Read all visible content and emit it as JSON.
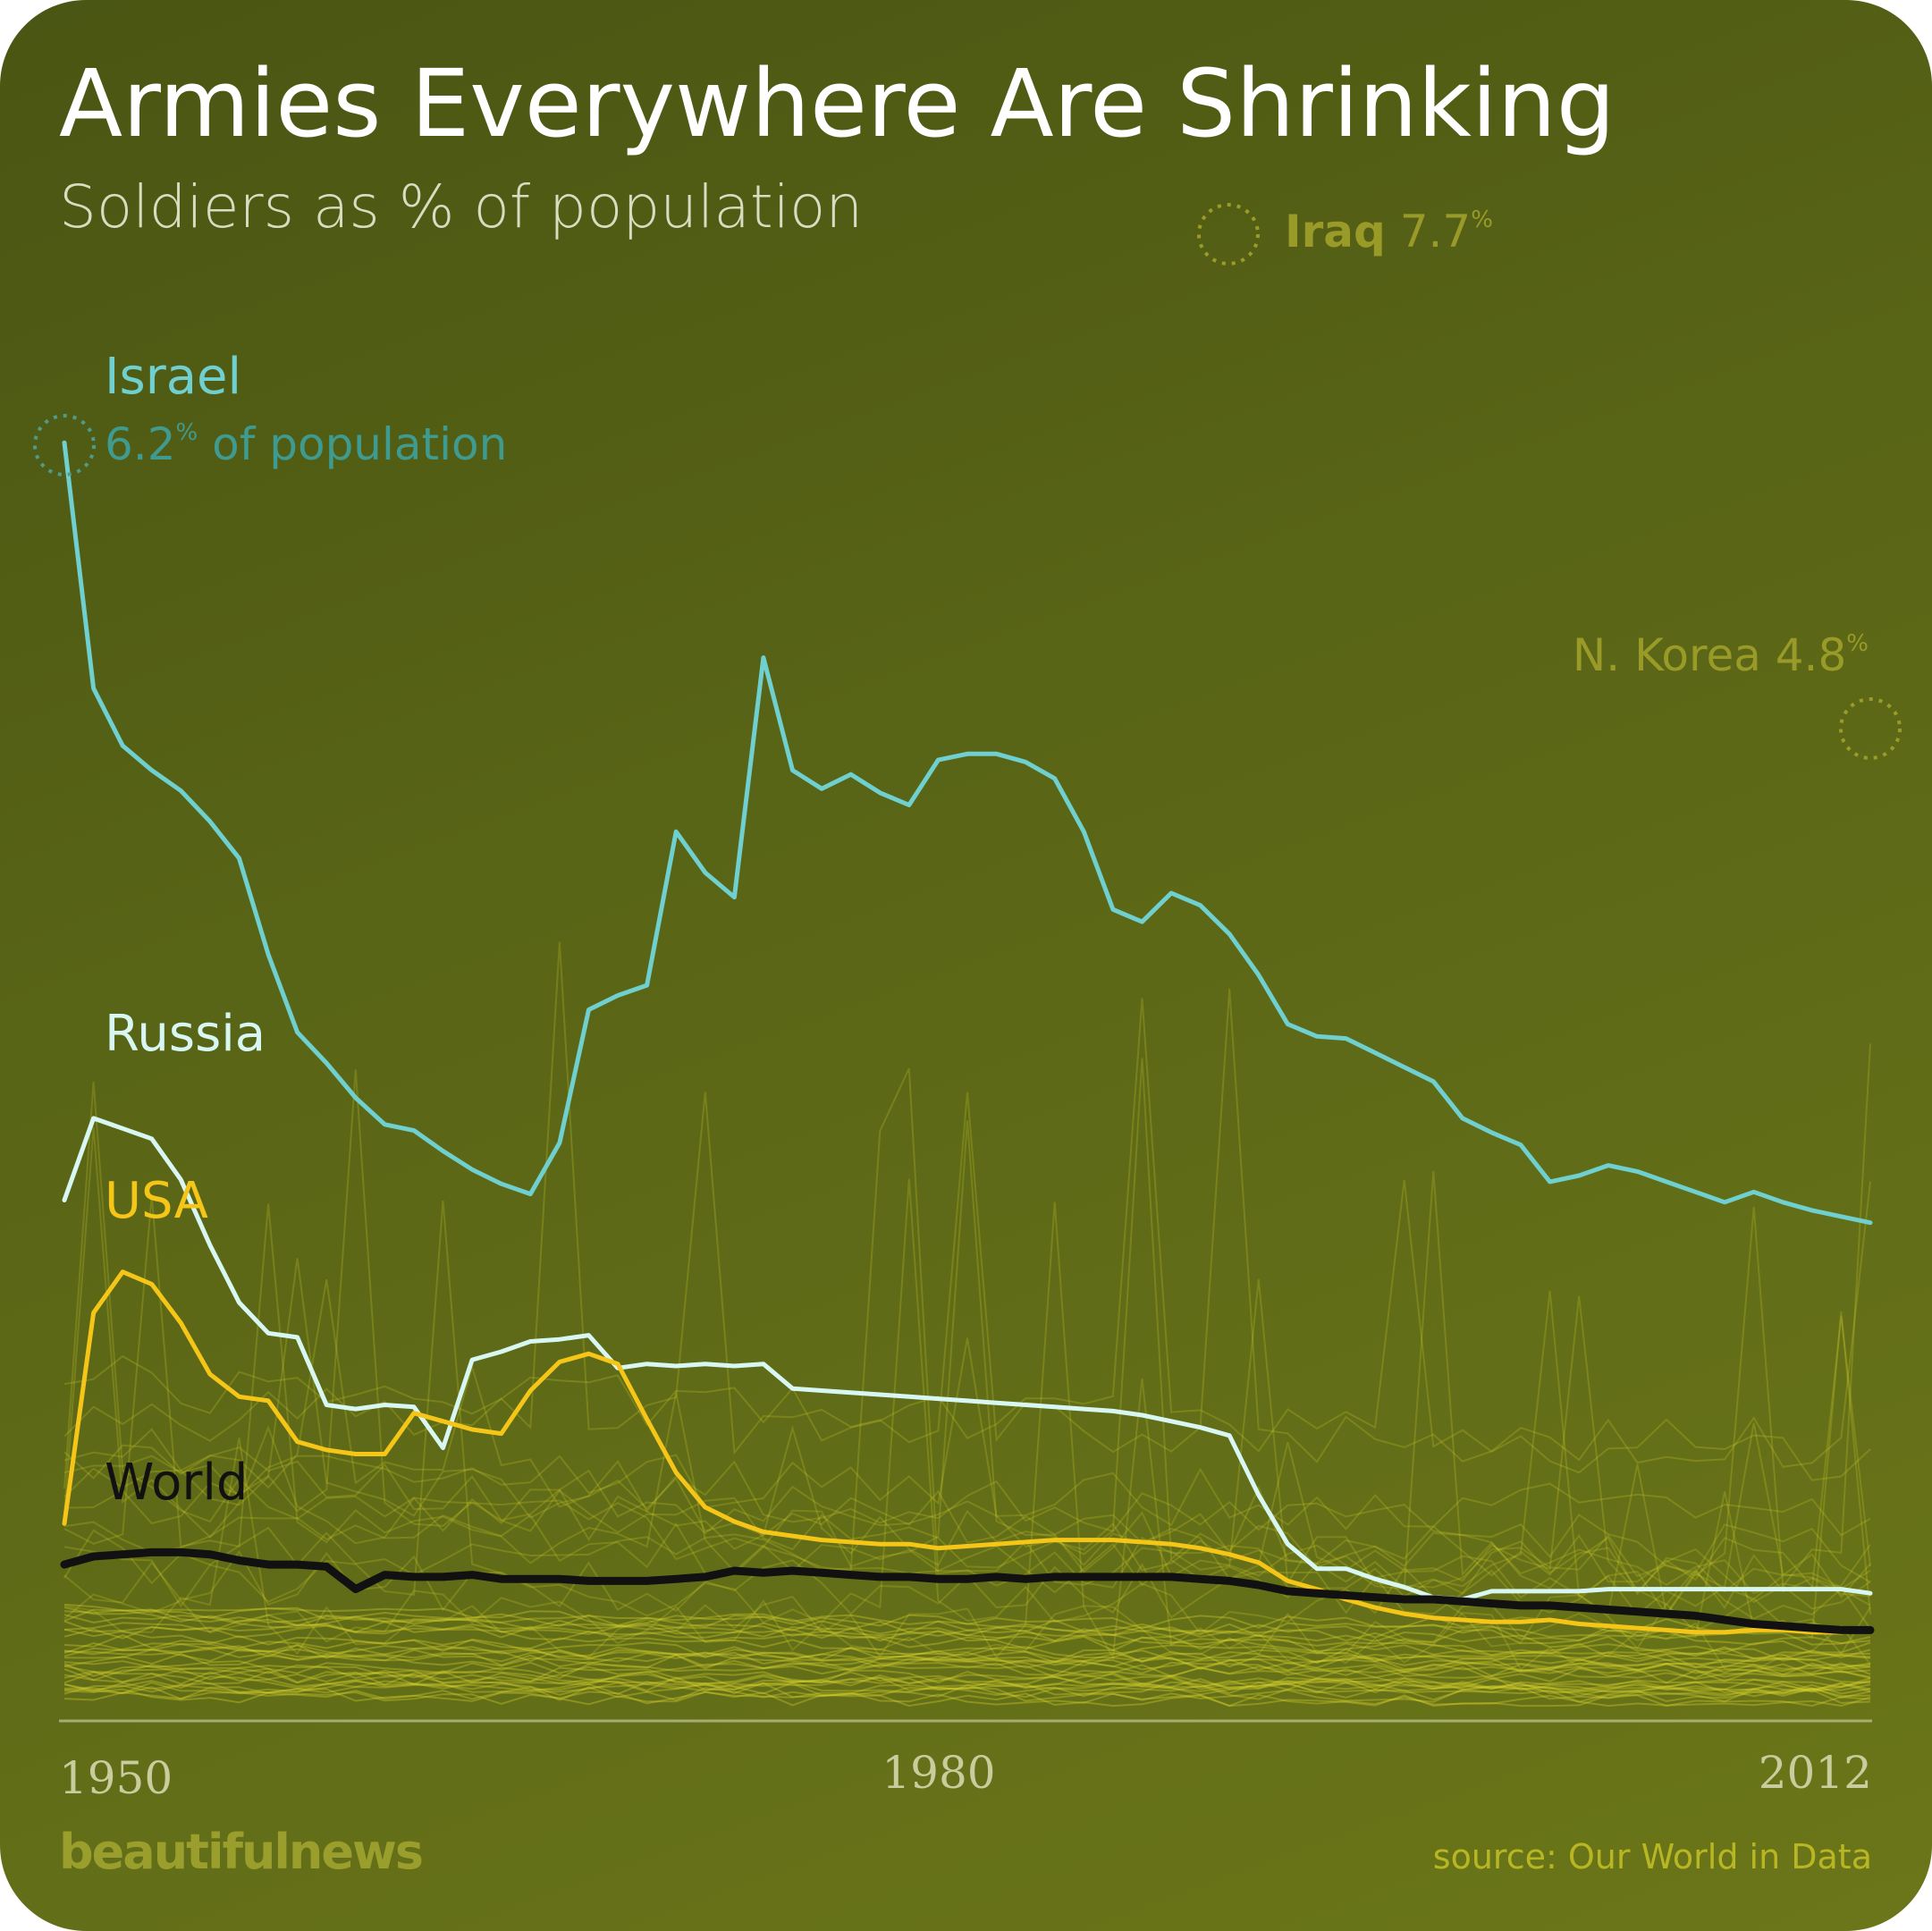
{
  "title": "Armies Everywhere Are Shrinking",
  "subtitle": "Soldiers as % of population",
  "brand": "beautifulnews",
  "source": "source: Our World in Data",
  "colors": {
    "israel": "#6fd0cf",
    "russia": "#d8f7f2",
    "usa": "#f5c518",
    "world": "#111111",
    "background_lines": "#d9d42e",
    "axis": "#c9cc9c"
  },
  "annotations": {
    "israel": {
      "name": "Israel",
      "value": "6.2",
      "unit": "%",
      "suffix": "of population"
    },
    "iraq": {
      "name": "Iraq",
      "value": "7.7",
      "unit": "%"
    },
    "nkorea": {
      "name": "N. Korea",
      "value": "4.8",
      "unit": "%"
    },
    "russia": {
      "name": "Russia"
    },
    "usa": {
      "name": "USA"
    },
    "world": {
      "name": "World"
    }
  },
  "chart_data": {
    "type": "line",
    "title": "Armies Everywhere Are Shrinking",
    "subtitle": "Soldiers as % of population",
    "xlabel": "",
    "ylabel": "",
    "x_ticks": [
      1950,
      1980,
      2012
    ],
    "xlim": [
      1950,
      2012
    ],
    "ylim": [
      0,
      8.2
    ],
    "grid": false,
    "legend": "direct labels",
    "series": [
      {
        "name": "Israel",
        "x": [
          1950,
          1951,
          1952,
          1953,
          1954,
          1955,
          1956,
          1957,
          1958,
          1959,
          1960,
          1961,
          1962,
          1963,
          1964,
          1965,
          1966,
          1967,
          1968,
          1969,
          1970,
          1971,
          1972,
          1973,
          1974,
          1975,
          1976,
          1977,
          1978,
          1979,
          1980,
          1981,
          1982,
          1983,
          1984,
          1985,
          1986,
          1987,
          1988,
          1989,
          1990,
          1991,
          1992,
          1993,
          1994,
          1995,
          1996,
          1997,
          1998,
          1999,
          2000,
          2001,
          2002,
          2003,
          2004,
          2005,
          2006,
          2007,
          2008,
          2009,
          2010,
          2011,
          2012
        ],
        "y": [
          6.2,
          5.0,
          4.72,
          4.6,
          4.5,
          4.35,
          4.17,
          3.7,
          3.32,
          3.17,
          3.0,
          2.87,
          2.84,
          2.74,
          2.65,
          2.58,
          2.53,
          2.78,
          3.43,
          3.5,
          3.55,
          4.3,
          4.1,
          3.98,
          5.15,
          4.6,
          4.51,
          4.58,
          4.49,
          4.43,
          4.65,
          4.68,
          4.68,
          4.64,
          4.56,
          4.3,
          3.92,
          3.86,
          4.0,
          3.94,
          3.8,
          3.6,
          3.36,
          3.3,
          3.29,
          3.22,
          3.15,
          3.08,
          2.9,
          2.83,
          2.77,
          2.59,
          2.62,
          2.67,
          2.64,
          2.59,
          2.54,
          2.49,
          2.54,
          2.49,
          2.45,
          2.42,
          2.39
        ]
      },
      {
        "name": "Russia",
        "x": [
          1950,
          1951,
          1952,
          1953,
          1954,
          1955,
          1956,
          1957,
          1958,
          1959,
          1960,
          1961,
          1962,
          1963,
          1964,
          1965,
          1966,
          1967,
          1968,
          1969,
          1970,
          1971,
          1972,
          1973,
          1974,
          1975,
          1976,
          1977,
          1978,
          1979,
          1980,
          1981,
          1982,
          1983,
          1984,
          1985,
          1986,
          1987,
          1988,
          1989,
          1990,
          1991,
          1992,
          1993,
          1994,
          1995,
          1996,
          1997,
          1998,
          1999,
          2000,
          2001,
          2002,
          2003,
          2004,
          2005,
          2006,
          2007,
          2008,
          2009,
          2010,
          2011,
          2012
        ],
        "y": [
          2.5,
          2.9,
          2.85,
          2.8,
          2.6,
          2.28,
          2.0,
          1.85,
          1.83,
          1.5,
          1.48,
          1.5,
          1.49,
          1.29,
          1.72,
          1.76,
          1.81,
          1.82,
          1.84,
          1.68,
          1.7,
          1.69,
          1.7,
          1.69,
          1.7,
          1.58,
          1.57,
          1.56,
          1.55,
          1.54,
          1.53,
          1.52,
          1.51,
          1.5,
          1.49,
          1.48,
          1.47,
          1.45,
          1.42,
          1.39,
          1.35,
          1.06,
          0.82,
          0.7,
          0.7,
          0.65,
          0.61,
          0.56,
          0.55,
          0.59,
          0.59,
          0.59,
          0.59,
          0.6,
          0.6,
          0.6,
          0.6,
          0.6,
          0.6,
          0.6,
          0.6,
          0.6,
          0.58
        ]
      },
      {
        "name": "USA",
        "x": [
          1950,
          1951,
          1952,
          1953,
          1954,
          1955,
          1956,
          1957,
          1958,
          1959,
          1960,
          1961,
          1962,
          1963,
          1964,
          1965,
          1966,
          1967,
          1968,
          1969,
          1970,
          1971,
          1972,
          1973,
          1974,
          1975,
          1976,
          1977,
          1978,
          1979,
          1980,
          1981,
          1982,
          1983,
          1984,
          1985,
          1986,
          1987,
          1988,
          1989,
          1990,
          1991,
          1992,
          1993,
          1994,
          1995,
          1996,
          1997,
          1998,
          1999,
          2000,
          2001,
          2002,
          2003,
          2004,
          2005,
          2006,
          2007,
          2008,
          2009,
          2010,
          2011,
          2012
        ],
        "y": [
          0.92,
          1.95,
          2.15,
          2.09,
          1.9,
          1.65,
          1.54,
          1.52,
          1.32,
          1.28,
          1.26,
          1.26,
          1.46,
          1.42,
          1.38,
          1.36,
          1.57,
          1.71,
          1.75,
          1.7,
          1.43,
          1.17,
          1.0,
          0.93,
          0.88,
          0.86,
          0.84,
          0.83,
          0.82,
          0.82,
          0.8,
          0.81,
          0.82,
          0.83,
          0.84,
          0.84,
          0.84,
          0.83,
          0.82,
          0.8,
          0.77,
          0.73,
          0.64,
          0.6,
          0.55,
          0.51,
          0.48,
          0.46,
          0.45,
          0.44,
          0.44,
          0.45,
          0.43,
          0.42,
          0.41,
          0.4,
          0.39,
          0.39,
          0.4,
          0.4,
          0.39,
          0.39,
          0.4
        ]
      },
      {
        "name": "World",
        "x": [
          1950,
          1951,
          1952,
          1953,
          1954,
          1955,
          1956,
          1957,
          1958,
          1959,
          1960,
          1961,
          1962,
          1963,
          1964,
          1965,
          1966,
          1967,
          1968,
          1969,
          1970,
          1971,
          1972,
          1973,
          1974,
          1975,
          1976,
          1977,
          1978,
          1979,
          1980,
          1981,
          1982,
          1983,
          1984,
          1985,
          1986,
          1987,
          1988,
          1989,
          1990,
          1991,
          1992,
          1993,
          1994,
          1995,
          1996,
          1997,
          1998,
          1999,
          2000,
          2001,
          2002,
          2003,
          2004,
          2005,
          2006,
          2007,
          2008,
          2009,
          2010,
          2011,
          2012
        ],
        "y": [
          0.72,
          0.76,
          0.77,
          0.78,
          0.78,
          0.77,
          0.74,
          0.72,
          0.72,
          0.71,
          0.6,
          0.67,
          0.66,
          0.66,
          0.67,
          0.65,
          0.65,
          0.65,
          0.64,
          0.64,
          0.64,
          0.65,
          0.66,
          0.69,
          0.68,
          0.69,
          0.68,
          0.67,
          0.66,
          0.66,
          0.65,
          0.65,
          0.66,
          0.65,
          0.66,
          0.66,
          0.66,
          0.66,
          0.66,
          0.65,
          0.64,
          0.62,
          0.59,
          0.58,
          0.57,
          0.56,
          0.55,
          0.55,
          0.54,
          0.53,
          0.52,
          0.52,
          0.51,
          0.5,
          0.49,
          0.48,
          0.47,
          0.45,
          0.43,
          0.42,
          0.41,
          0.4,
          0.4
        ]
      }
    ]
  }
}
